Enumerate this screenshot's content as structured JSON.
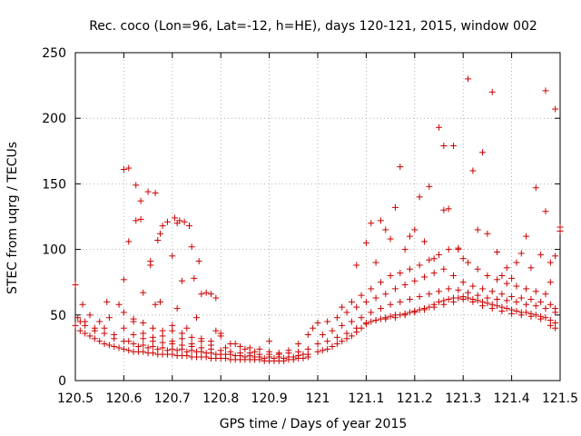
{
  "chart_data": {
    "type": "scatter",
    "title": "Rec. coco (Lon=96, Lat=-12, h=HE), days 120-121, 2015, window 002",
    "xlabel": "GPS time / Days of year 2015",
    "ylabel": "STEC from uqrg / TECUs",
    "xlim": [
      120.5,
      121.5
    ],
    "ylim": [
      0,
      250
    ],
    "x_ticks": [
      "120.5",
      "120.6",
      "120.7",
      "120.8",
      "120.9",
      "121",
      "121.1",
      "121.2",
      "121.3",
      "121.4",
      "121.5"
    ],
    "y_ticks": [
      "0",
      "50",
      "100",
      "150",
      "200",
      "250"
    ],
    "grid": true,
    "marker": "plus",
    "series_color": "#cc0000",
    "points": [
      [
        120.5,
        73
      ],
      [
        120.505,
        48
      ],
      [
        120.51,
        45
      ],
      [
        120.515,
        58
      ],
      [
        120.52,
        42
      ],
      [
        120.53,
        50
      ],
      [
        120.54,
        38
      ],
      [
        120.55,
        45
      ],
      [
        120.56,
        40
      ],
      [
        120.565,
        60
      ],
      [
        120.57,
        48
      ],
      [
        120.58,
        35
      ],
      [
        120.59,
        58
      ],
      [
        120.6,
        77
      ],
      [
        120.6,
        161
      ],
      [
        120.61,
        162
      ],
      [
        120.61,
        106
      ],
      [
        120.62,
        47
      ],
      [
        120.625,
        149
      ],
      [
        120.625,
        122
      ],
      [
        120.635,
        123
      ],
      [
        120.635,
        137
      ],
      [
        120.64,
        67
      ],
      [
        120.65,
        144
      ],
      [
        120.655,
        88
      ],
      [
        120.655,
        91
      ],
      [
        120.665,
        143
      ],
      [
        120.665,
        58
      ],
      [
        120.67,
        107
      ],
      [
        120.675,
        112
      ],
      [
        120.68,
        118
      ],
      [
        120.69,
        121
      ],
      [
        120.7,
        95
      ],
      [
        120.705,
        124
      ],
      [
        120.71,
        120
      ],
      [
        120.715,
        122
      ],
      [
        120.725,
        121
      ],
      [
        120.735,
        118
      ],
      [
        120.74,
        102
      ],
      [
        120.745,
        78
      ],
      [
        120.755,
        91
      ],
      [
        120.76,
        66
      ],
      [
        120.77,
        67
      ],
      [
        120.78,
        66
      ],
      [
        120.79,
        63
      ],
      [
        120.72,
        76
      ],
      [
        120.675,
        60
      ],
      [
        120.7,
        42
      ],
      [
        120.71,
        55
      ],
      [
        120.73,
        40
      ],
      [
        120.75,
        48
      ],
      [
        120.5,
        42
      ],
      [
        120.51,
        38
      ],
      [
        120.52,
        36
      ],
      [
        120.53,
        34
      ],
      [
        120.54,
        32
      ],
      [
        120.55,
        30
      ],
      [
        120.56,
        28
      ],
      [
        120.57,
        27
      ],
      [
        120.58,
        26
      ],
      [
        120.59,
        25
      ],
      [
        120.6,
        24
      ],
      [
        120.61,
        23
      ],
      [
        120.62,
        22
      ],
      [
        120.63,
        22
      ],
      [
        120.64,
        22
      ],
      [
        120.65,
        21
      ],
      [
        120.66,
        21
      ],
      [
        120.67,
        20
      ],
      [
        120.68,
        20
      ],
      [
        120.69,
        20
      ],
      [
        120.7,
        20
      ],
      [
        120.71,
        19
      ],
      [
        120.72,
        19
      ],
      [
        120.73,
        19
      ],
      [
        120.74,
        18
      ],
      [
        120.75,
        18
      ],
      [
        120.76,
        18
      ],
      [
        120.77,
        18
      ],
      [
        120.78,
        17
      ],
      [
        120.79,
        17
      ],
      [
        120.8,
        17
      ],
      [
        120.81,
        17
      ],
      [
        120.82,
        16
      ],
      [
        120.83,
        16
      ],
      [
        120.84,
        16
      ],
      [
        120.85,
        16
      ],
      [
        120.86,
        16
      ],
      [
        120.87,
        16
      ],
      [
        120.88,
        16
      ],
      [
        120.89,
        15
      ],
      [
        120.9,
        15
      ],
      [
        120.91,
        15
      ],
      [
        120.92,
        15
      ],
      [
        120.93,
        15
      ],
      [
        120.94,
        16
      ],
      [
        120.95,
        16
      ],
      [
        120.96,
        17
      ],
      [
        120.97,
        17
      ],
      [
        120.98,
        18
      ],
      [
        120.52,
        45
      ],
      [
        120.54,
        40
      ],
      [
        120.56,
        36
      ],
      [
        120.58,
        32
      ],
      [
        120.6,
        30
      ],
      [
        120.62,
        28
      ],
      [
        120.64,
        27
      ],
      [
        120.66,
        26
      ],
      [
        120.68,
        25
      ],
      [
        120.7,
        24
      ],
      [
        120.72,
        24
      ],
      [
        120.74,
        23
      ],
      [
        120.76,
        22
      ],
      [
        120.78,
        21
      ],
      [
        120.8,
        20
      ],
      [
        120.82,
        20
      ],
      [
        120.84,
        19
      ],
      [
        120.86,
        19
      ],
      [
        120.88,
        18
      ],
      [
        120.9,
        18
      ],
      [
        120.92,
        18
      ],
      [
        120.94,
        18
      ],
      [
        120.96,
        19
      ],
      [
        120.98,
        20
      ],
      [
        120.6,
        40
      ],
      [
        120.62,
        35
      ],
      [
        120.64,
        32
      ],
      [
        120.66,
        30
      ],
      [
        120.68,
        29
      ],
      [
        120.7,
        28
      ],
      [
        120.72,
        27
      ],
      [
        120.74,
        26
      ],
      [
        120.76,
        25
      ],
      [
        120.78,
        24
      ],
      [
        120.8,
        23
      ],
      [
        120.82,
        22
      ],
      [
        120.84,
        21
      ],
      [
        120.86,
        21
      ],
      [
        120.88,
        20
      ],
      [
        120.9,
        20
      ],
      [
        120.92,
        20
      ],
      [
        120.94,
        21
      ],
      [
        120.96,
        22
      ],
      [
        120.98,
        24
      ],
      [
        120.61,
        30
      ],
      [
        120.63,
        26
      ],
      [
        120.65,
        25
      ],
      [
        120.67,
        24
      ],
      [
        120.69,
        23
      ],
      [
        120.71,
        23
      ],
      [
        120.73,
        22
      ],
      [
        120.75,
        22
      ],
      [
        120.77,
        21
      ],
      [
        120.79,
        20
      ],
      [
        120.81,
        20
      ],
      [
        120.83,
        19
      ],
      [
        120.85,
        18
      ],
      [
        120.87,
        18
      ],
      [
        120.89,
        17
      ],
      [
        120.91,
        17
      ],
      [
        120.93,
        17
      ],
      [
        120.95,
        18
      ],
      [
        120.97,
        20
      ],
      [
        120.64,
        36
      ],
      [
        120.66,
        33
      ],
      [
        120.68,
        34
      ],
      [
        120.7,
        30
      ],
      [
        120.72,
        32
      ],
      [
        120.74,
        28
      ],
      [
        120.76,
        30
      ],
      [
        120.78,
        27
      ],
      [
        120.8,
        36
      ],
      [
        120.82,
        28
      ],
      [
        120.84,
        26
      ],
      [
        120.86,
        25
      ],
      [
        120.88,
        24
      ],
      [
        120.9,
        22
      ],
      [
        120.92,
        21
      ],
      [
        120.94,
        23
      ],
      [
        120.96,
        28
      ],
      [
        120.98,
        35
      ],
      [
        120.99,
        40
      ],
      [
        120.6,
        52
      ],
      [
        120.62,
        45
      ],
      [
        120.64,
        44
      ],
      [
        120.66,
        40
      ],
      [
        120.68,
        38
      ],
      [
        120.7,
        38
      ],
      [
        120.72,
        36
      ],
      [
        120.74,
        33
      ],
      [
        120.76,
        32
      ],
      [
        120.78,
        30
      ],
      [
        120.79,
        38
      ],
      [
        120.8,
        34
      ],
      [
        120.81,
        25
      ],
      [
        120.83,
        28
      ],
      [
        120.85,
        24
      ],
      [
        120.87,
        22
      ],
      [
        120.9,
        30
      ],
      [
        121.0,
        22
      ],
      [
        121.01,
        23
      ],
      [
        121.02,
        24
      ],
      [
        121.03,
        26
      ],
      [
        121.04,
        28
      ],
      [
        121.05,
        30
      ],
      [
        121.06,
        32
      ],
      [
        121.07,
        34
      ],
      [
        121.08,
        37
      ],
      [
        121.09,
        40
      ],
      [
        121.1,
        43
      ],
      [
        121.11,
        45
      ],
      [
        121.12,
        46
      ],
      [
        121.13,
        47
      ],
      [
        121.14,
        48
      ],
      [
        121.15,
        49
      ],
      [
        121.16,
        50
      ],
      [
        121.17,
        50
      ],
      [
        121.18,
        51
      ],
      [
        121.19,
        52
      ],
      [
        121.2,
        53
      ],
      [
        121.21,
        54
      ],
      [
        121.22,
        55
      ],
      [
        121.23,
        56
      ],
      [
        121.24,
        58
      ],
      [
        121.25,
        60
      ],
      [
        121.26,
        61
      ],
      [
        121.27,
        62
      ],
      [
        121.28,
        63
      ],
      [
        121.29,
        63
      ],
      [
        121.3,
        64
      ],
      [
        121.31,
        63
      ],
      [
        121.32,
        62
      ],
      [
        121.33,
        61
      ],
      [
        121.34,
        60
      ],
      [
        121.35,
        59
      ],
      [
        121.36,
        58
      ],
      [
        121.37,
        57
      ],
      [
        121.38,
        56
      ],
      [
        121.39,
        55
      ],
      [
        121.4,
        54
      ],
      [
        121.41,
        53
      ],
      [
        121.42,
        52
      ],
      [
        121.43,
        52
      ],
      [
        121.44,
        51
      ],
      [
        121.45,
        50
      ],
      [
        121.46,
        49
      ],
      [
        121.47,
        48
      ],
      [
        121.48,
        46
      ],
      [
        121.49,
        44
      ],
      [
        121.0,
        28
      ],
      [
        121.02,
        30
      ],
      [
        121.04,
        33
      ],
      [
        121.06,
        36
      ],
      [
        121.08,
        40
      ],
      [
        121.1,
        44
      ],
      [
        121.12,
        46
      ],
      [
        121.14,
        47
      ],
      [
        121.16,
        48
      ],
      [
        121.18,
        50
      ],
      [
        121.2,
        52
      ],
      [
        121.22,
        54
      ],
      [
        121.24,
        56
      ],
      [
        121.26,
        58
      ],
      [
        121.28,
        60
      ],
      [
        121.3,
        62
      ],
      [
        121.32,
        60
      ],
      [
        121.34,
        57
      ],
      [
        121.36,
        55
      ],
      [
        121.38,
        53
      ],
      [
        121.4,
        51
      ],
      [
        121.42,
        50
      ],
      [
        121.44,
        49
      ],
      [
        121.46,
        47
      ],
      [
        121.48,
        42
      ],
      [
        121.49,
        40
      ],
      [
        121.01,
        35
      ],
      [
        121.03,
        38
      ],
      [
        121.05,
        42
      ],
      [
        121.07,
        45
      ],
      [
        121.09,
        48
      ],
      [
        121.11,
        52
      ],
      [
        121.13,
        55
      ],
      [
        121.15,
        58
      ],
      [
        121.17,
        60
      ],
      [
        121.19,
        62
      ],
      [
        121.21,
        64
      ],
      [
        121.23,
        66
      ],
      [
        121.25,
        68
      ],
      [
        121.27,
        70
      ],
      [
        121.29,
        69
      ],
      [
        121.31,
        67
      ],
      [
        121.33,
        65
      ],
      [
        121.35,
        63
      ],
      [
        121.37,
        62
      ],
      [
        121.39,
        61
      ],
      [
        121.41,
        60
      ],
      [
        121.43,
        58
      ],
      [
        121.45,
        57
      ],
      [
        121.47,
        55
      ],
      [
        121.49,
        52
      ],
      [
        121.0,
        44
      ],
      [
        121.02,
        45
      ],
      [
        121.04,
        48
      ],
      [
        121.06,
        52
      ],
      [
        121.08,
        56
      ],
      [
        121.1,
        60
      ],
      [
        121.12,
        63
      ],
      [
        121.14,
        66
      ],
      [
        121.16,
        70
      ],
      [
        121.18,
        73
      ],
      [
        121.2,
        76
      ],
      [
        121.22,
        79
      ],
      [
        121.24,
        82
      ],
      [
        121.26,
        85
      ],
      [
        121.28,
        80
      ],
      [
        121.3,
        75
      ],
      [
        121.32,
        72
      ],
      [
        121.34,
        70
      ],
      [
        121.36,
        68
      ],
      [
        121.38,
        66
      ],
      [
        121.4,
        64
      ],
      [
        121.42,
        63
      ],
      [
        121.44,
        62
      ],
      [
        121.46,
        60
      ],
      [
        121.48,
        58
      ],
      [
        121.05,
        56
      ],
      [
        121.07,
        60
      ],
      [
        121.09,
        65
      ],
      [
        121.11,
        70
      ],
      [
        121.13,
        75
      ],
      [
        121.15,
        80
      ],
      [
        121.17,
        82
      ],
      [
        121.19,
        85
      ],
      [
        121.21,
        88
      ],
      [
        121.23,
        92
      ],
      [
        121.25,
        96
      ],
      [
        121.27,
        100
      ],
      [
        121.29,
        100
      ],
      [
        121.31,
        90
      ],
      [
        121.33,
        85
      ],
      [
        121.35,
        80
      ],
      [
        121.37,
        77
      ],
      [
        121.39,
        74
      ],
      [
        121.41,
        72
      ],
      [
        121.43,
        70
      ],
      [
        121.45,
        68
      ],
      [
        121.47,
        66
      ],
      [
        121.49,
        55
      ],
      [
        121.08,
        88
      ],
      [
        121.1,
        105
      ],
      [
        121.11,
        120
      ],
      [
        121.12,
        90
      ],
      [
        121.13,
        122
      ],
      [
        121.14,
        115
      ],
      [
        121.15,
        108
      ],
      [
        121.16,
        132
      ],
      [
        121.17,
        163
      ],
      [
        121.18,
        100
      ],
      [
        121.19,
        110
      ],
      [
        121.2,
        115
      ],
      [
        121.21,
        140
      ],
      [
        121.22,
        106
      ],
      [
        121.23,
        148
      ],
      [
        121.24,
        93
      ],
      [
        121.25,
        193
      ],
      [
        121.26,
        130
      ],
      [
        121.26,
        179
      ],
      [
        121.27,
        131
      ],
      [
        121.28,
        179
      ],
      [
        121.29,
        101
      ],
      [
        121.3,
        93
      ],
      [
        121.31,
        230
      ],
      [
        121.32,
        160
      ],
      [
        121.33,
        115
      ],
      [
        121.34,
        174
      ],
      [
        121.35,
        112
      ],
      [
        121.36,
        220
      ],
      [
        121.37,
        98
      ],
      [
        121.38,
        80
      ],
      [
        121.39,
        86
      ],
      [
        121.4,
        78
      ],
      [
        121.41,
        90
      ],
      [
        121.42,
        97
      ],
      [
        121.43,
        110
      ],
      [
        121.44,
        86
      ],
      [
        121.45,
        147
      ],
      [
        121.46,
        96
      ],
      [
        121.47,
        129
      ],
      [
        121.47,
        221
      ],
      [
        121.48,
        90
      ],
      [
        121.49,
        207
      ],
      [
        121.5,
        117
      ],
      [
        121.5,
        114
      ],
      [
        121.49,
        95
      ],
      [
        121.48,
        75
      ]
    ]
  }
}
